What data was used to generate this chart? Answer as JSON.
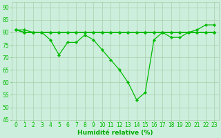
{
  "x": [
    0,
    1,
    2,
    3,
    4,
    5,
    6,
    7,
    8,
    9,
    10,
    11,
    12,
    13,
    14,
    15,
    16,
    17,
    18,
    19,
    20,
    21,
    22,
    23
  ],
  "series_main": [
    81,
    81,
    80,
    80,
    77,
    71,
    76,
    76,
    79,
    77,
    73,
    69,
    65,
    60,
    53,
    56,
    77,
    80,
    78,
    78,
    80,
    81,
    83,
    83
  ],
  "series_flat1": [
    81,
    80,
    80,
    80,
    80,
    80,
    80,
    80,
    80,
    80,
    80,
    80,
    80,
    80,
    80,
    80,
    80,
    80,
    80,
    80,
    80,
    80,
    80,
    80
  ],
  "series_flat2": [
    81,
    80,
    80,
    80,
    80,
    80,
    80,
    80,
    80,
    80,
    80,
    80,
    80,
    80,
    80,
    80,
    80,
    80,
    80,
    80,
    80,
    80,
    80,
    80
  ],
  "series_flat3": [
    81,
    80,
    80,
    80,
    80,
    80,
    80,
    80,
    80,
    80,
    80,
    80,
    80,
    80,
    80,
    80,
    80,
    80,
    80,
    80,
    80,
    80,
    80,
    80
  ],
  "line_color": "#00bb00",
  "bg_color": "#cceedc",
  "grid_major_color": "#aaccaa",
  "grid_minor_color": "#bbddbb",
  "xlabel": "Humidité relative (%)",
  "xlabel_color": "#00aa00",
  "xlabel_fontsize": 6.5,
  "tick_fontsize": 5.5,
  "ylim": [
    45,
    92
  ],
  "yticks": [
    45,
    50,
    55,
    60,
    65,
    70,
    75,
    80,
    85,
    90
  ],
  "xticks": [
    0,
    1,
    2,
    3,
    4,
    5,
    6,
    7,
    8,
    9,
    10,
    11,
    12,
    13,
    14,
    15,
    16,
    17,
    18,
    19,
    20,
    21,
    22,
    23
  ],
  "figwidth": 3.2,
  "figheight": 2.0,
  "dpi": 100
}
